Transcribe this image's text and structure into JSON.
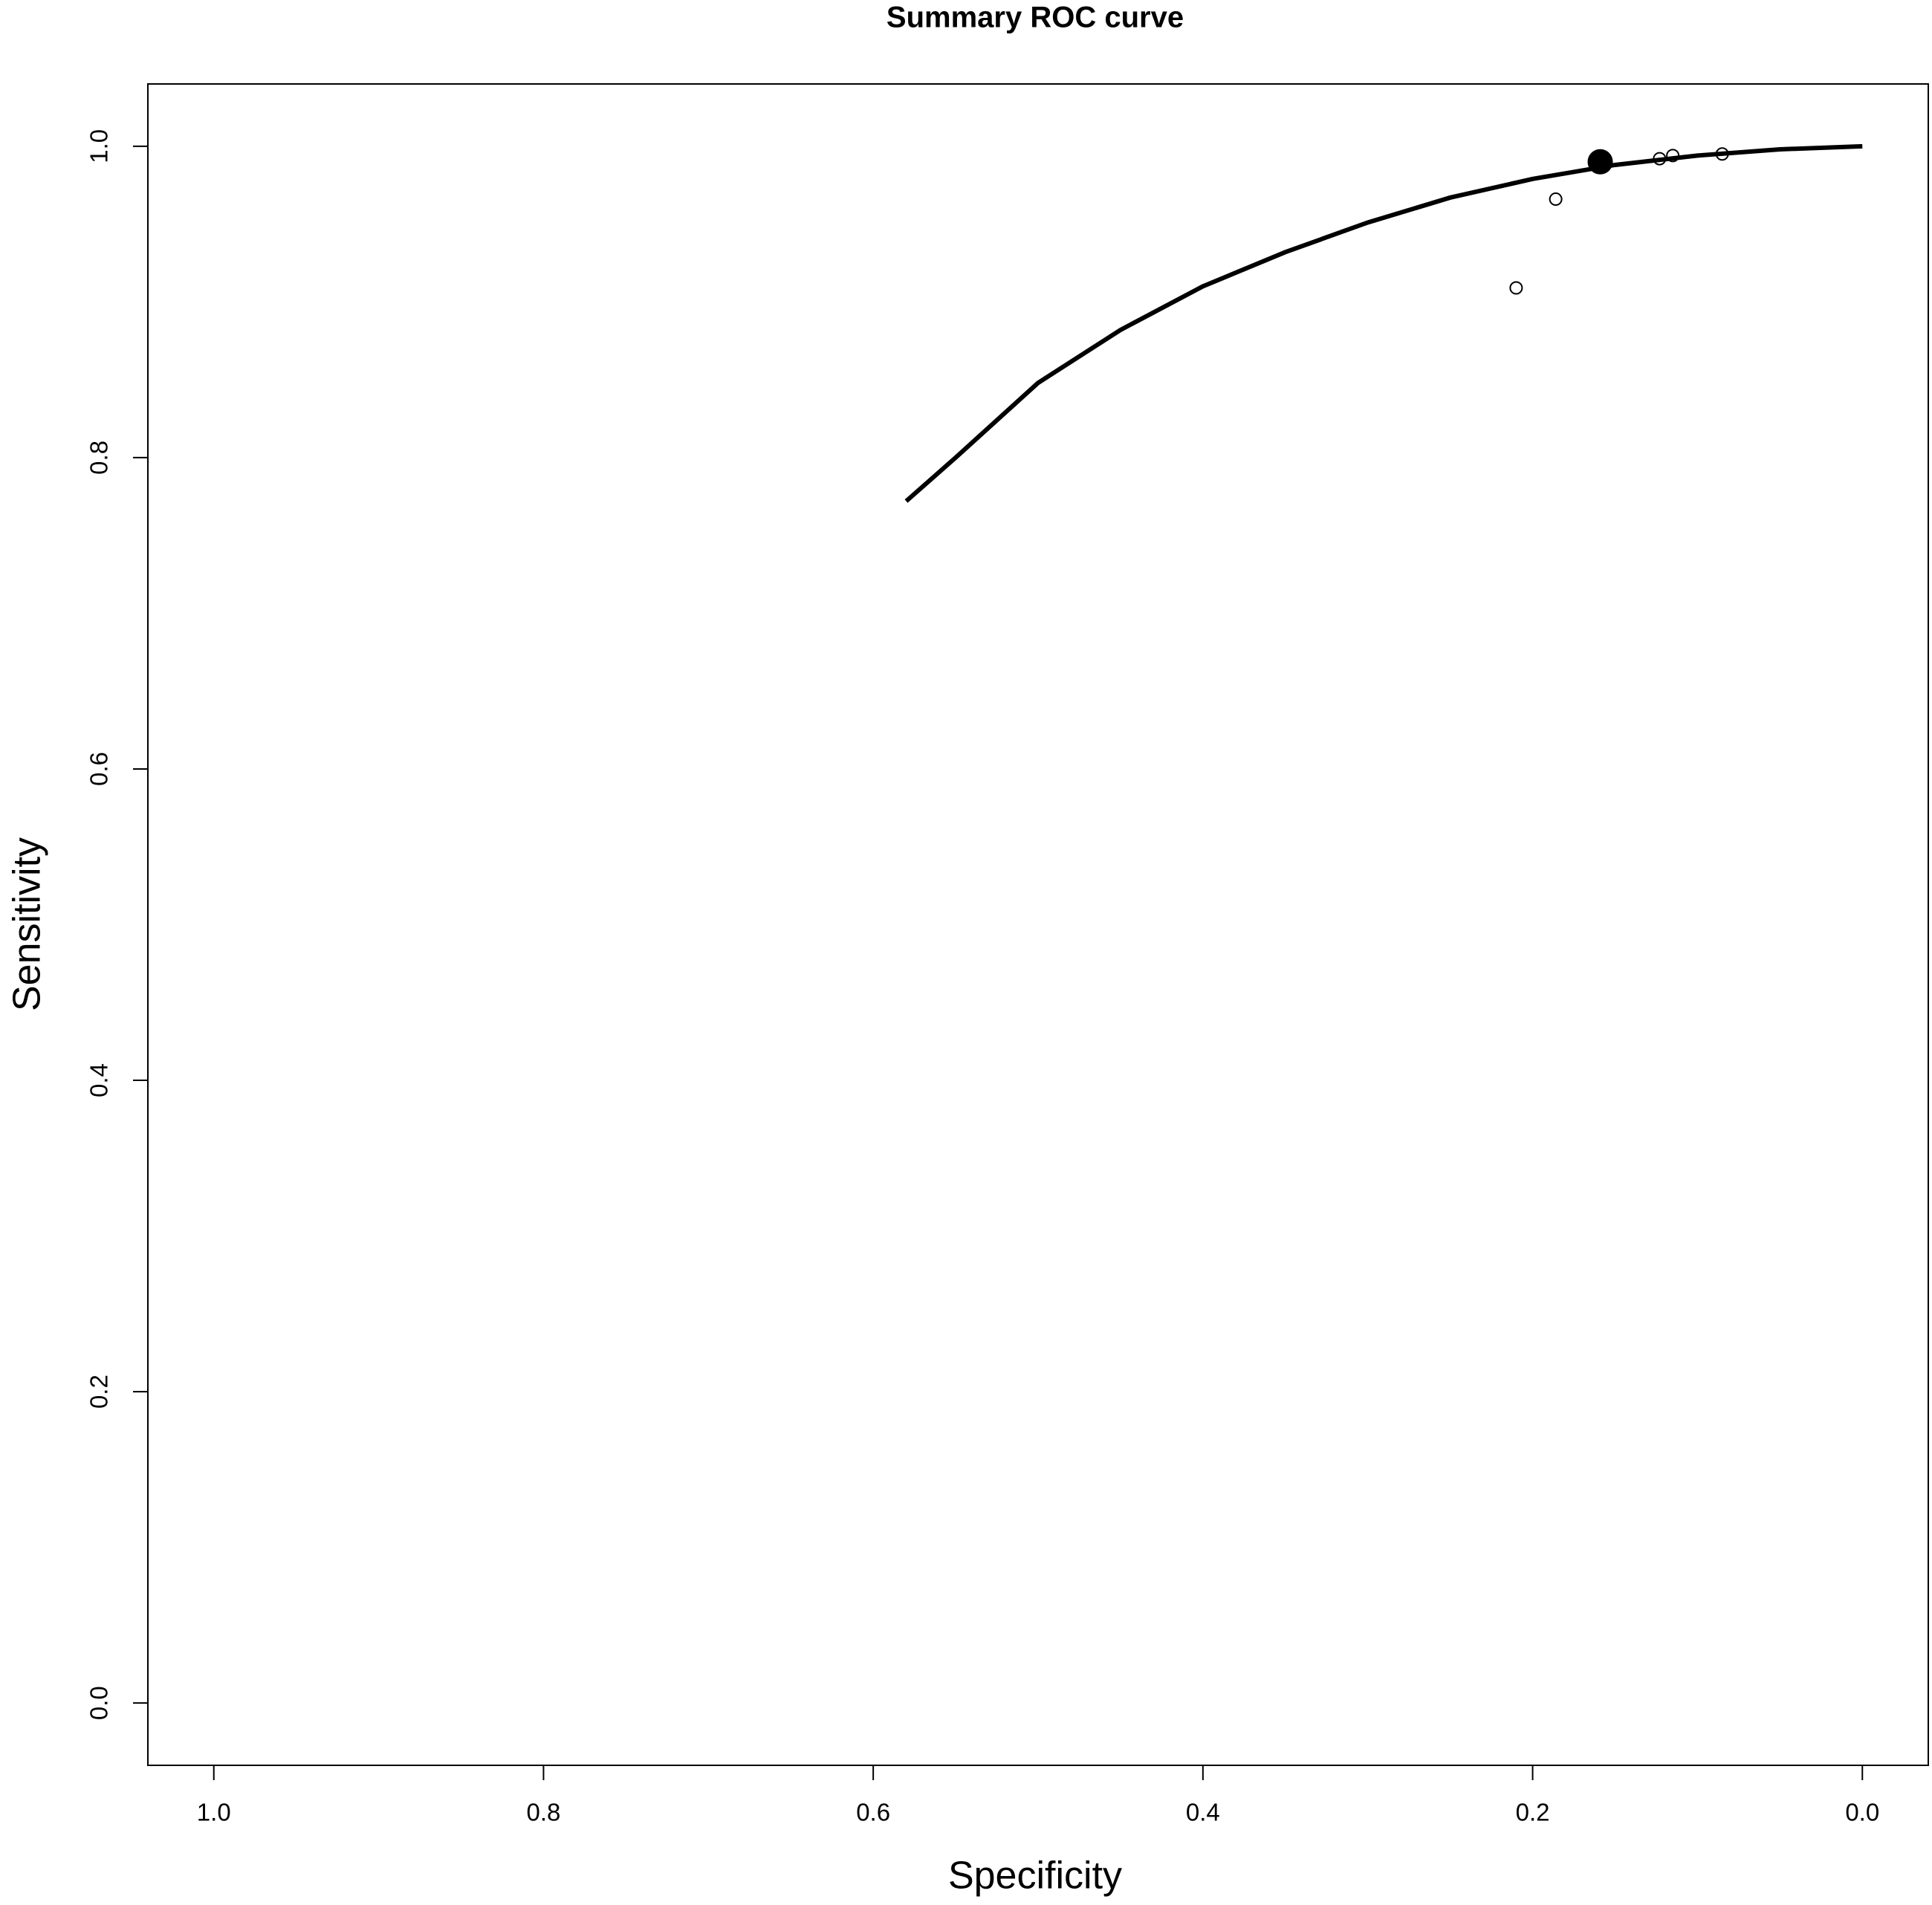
{
  "chart_data": {
    "type": "line",
    "title": "Summary ROC curve",
    "x_label": "Specificity",
    "y_label": "Sensitivity",
    "xlim": [
      1.04,
      -0.04
    ],
    "ylim": [
      -0.04,
      1.04
    ],
    "xticks": [
      {
        "value": 1,
        "label": "1.0"
      },
      0.8,
      0.6,
      0.4,
      0.2,
      {
        "value": 0,
        "label": "0.0"
      }
    ],
    "yticks": [
      {
        "value": 0,
        "label": "0.0"
      },
      0.2,
      0.4,
      0.6,
      0.8,
      {
        "value": 1,
        "label": "1.0"
      }
    ],
    "series": [
      {
        "style": "line",
        "color": "#000000",
        "x": [
          0.58,
          0.55,
          0.5,
          0.45,
          0.4,
          0.35,
          0.3,
          0.25,
          0.2,
          0.15,
          0.1,
          0.05,
          0.0
        ],
        "values": [
          0.772,
          0.8,
          0.848,
          0.882,
          0.91,
          0.932,
          0.951,
          0.967,
          0.979,
          0.988,
          0.994,
          0.998,
          1.0
        ]
      },
      {
        "style": "open-points",
        "color": "#000000",
        "x": [
          0.186,
          0.21,
          0.123,
          0.115,
          0.085
        ],
        "values": [
          0.966,
          0.909,
          0.992,
          0.994,
          0.995
        ]
      },
      {
        "style": "filled-point",
        "color": "#000000",
        "x": [
          0.159
        ],
        "values": [
          0.99
        ]
      }
    ]
  }
}
